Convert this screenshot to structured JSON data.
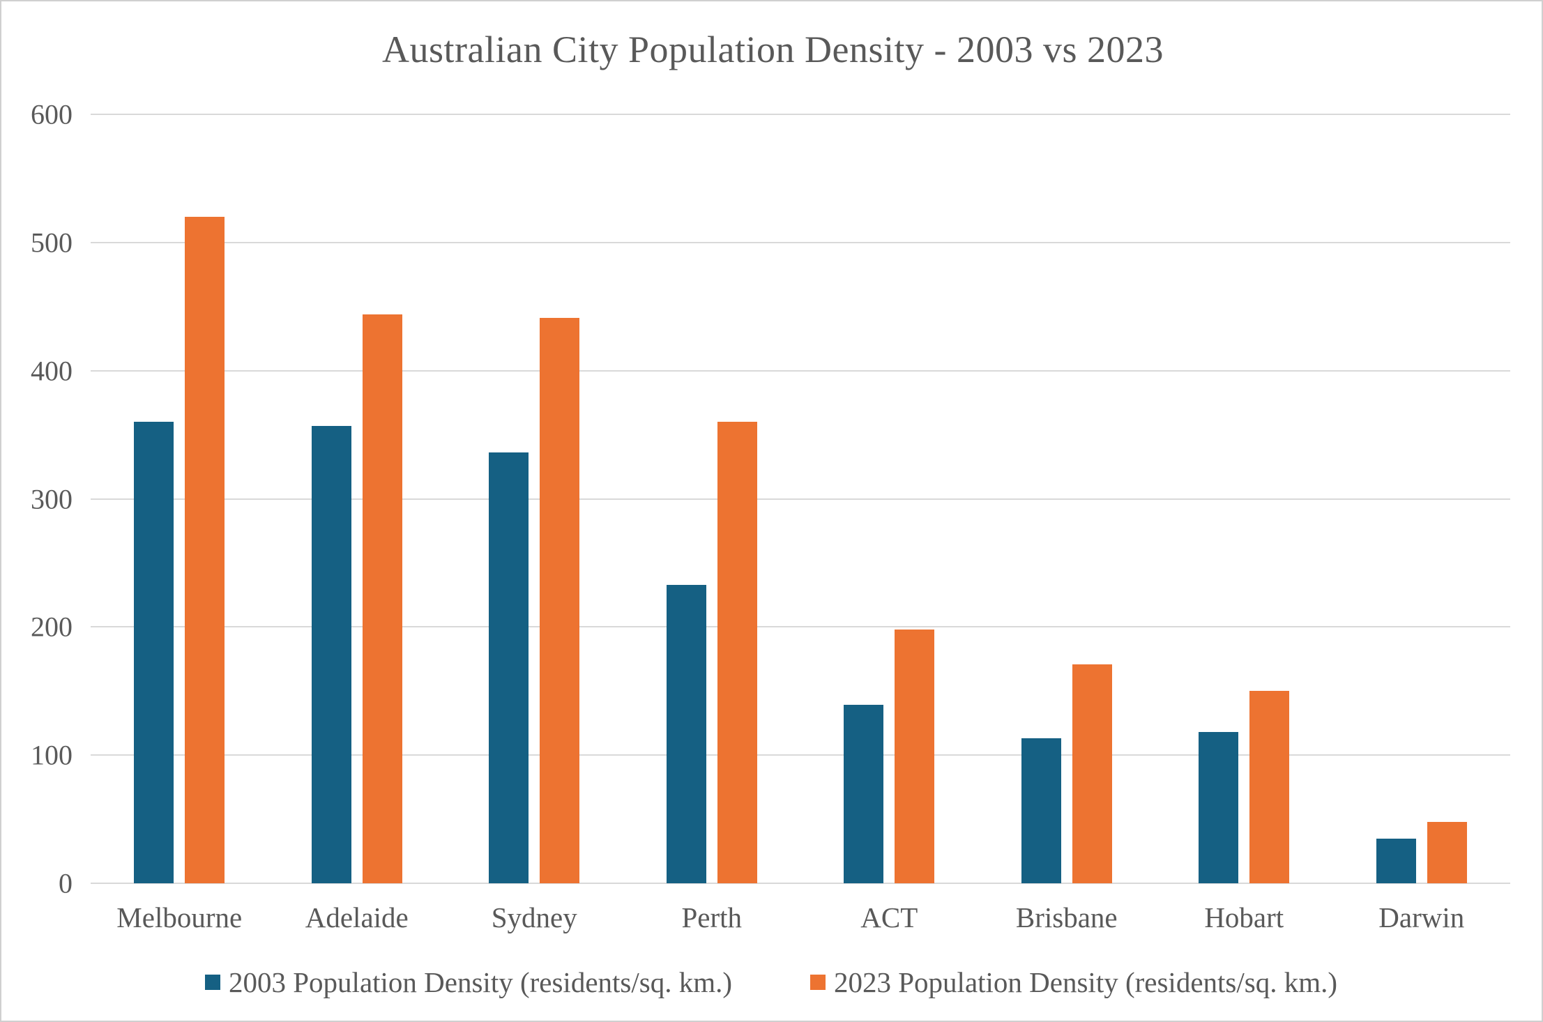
{
  "title": "Australian City Population Density - 2003 vs 2023",
  "colors": {
    "series_2003": "#156083",
    "series_2023": "#ED7331",
    "text": "#595959",
    "gridline": "#D9D9D9",
    "frame_border": "#CFCFCF"
  },
  "chart_data": {
    "type": "bar",
    "title": "Australian City Population Density - 2003 vs 2023",
    "categories": [
      "Melbourne",
      "Adelaide",
      "Sydney",
      "Perth",
      "ACT",
      "Brisbane",
      "Hobart",
      "Darwin"
    ],
    "series": [
      {
        "name": "2003 Population Density (residents/sq. km.)",
        "color": "#156083",
        "values": [
          360,
          357,
          336,
          233,
          139,
          113,
          118,
          35
        ]
      },
      {
        "name": "2023 Population Density (residents/sq. km.)",
        "color": "#ED7331",
        "values": [
          520,
          444,
          441,
          360,
          198,
          171,
          150,
          48
        ]
      }
    ],
    "xlabel": "",
    "ylabel": "",
    "ylim": [
      0,
      600
    ],
    "yticks": [
      0,
      100,
      200,
      300,
      400,
      500,
      600
    ],
    "grid": true,
    "legend_position": "bottom"
  }
}
